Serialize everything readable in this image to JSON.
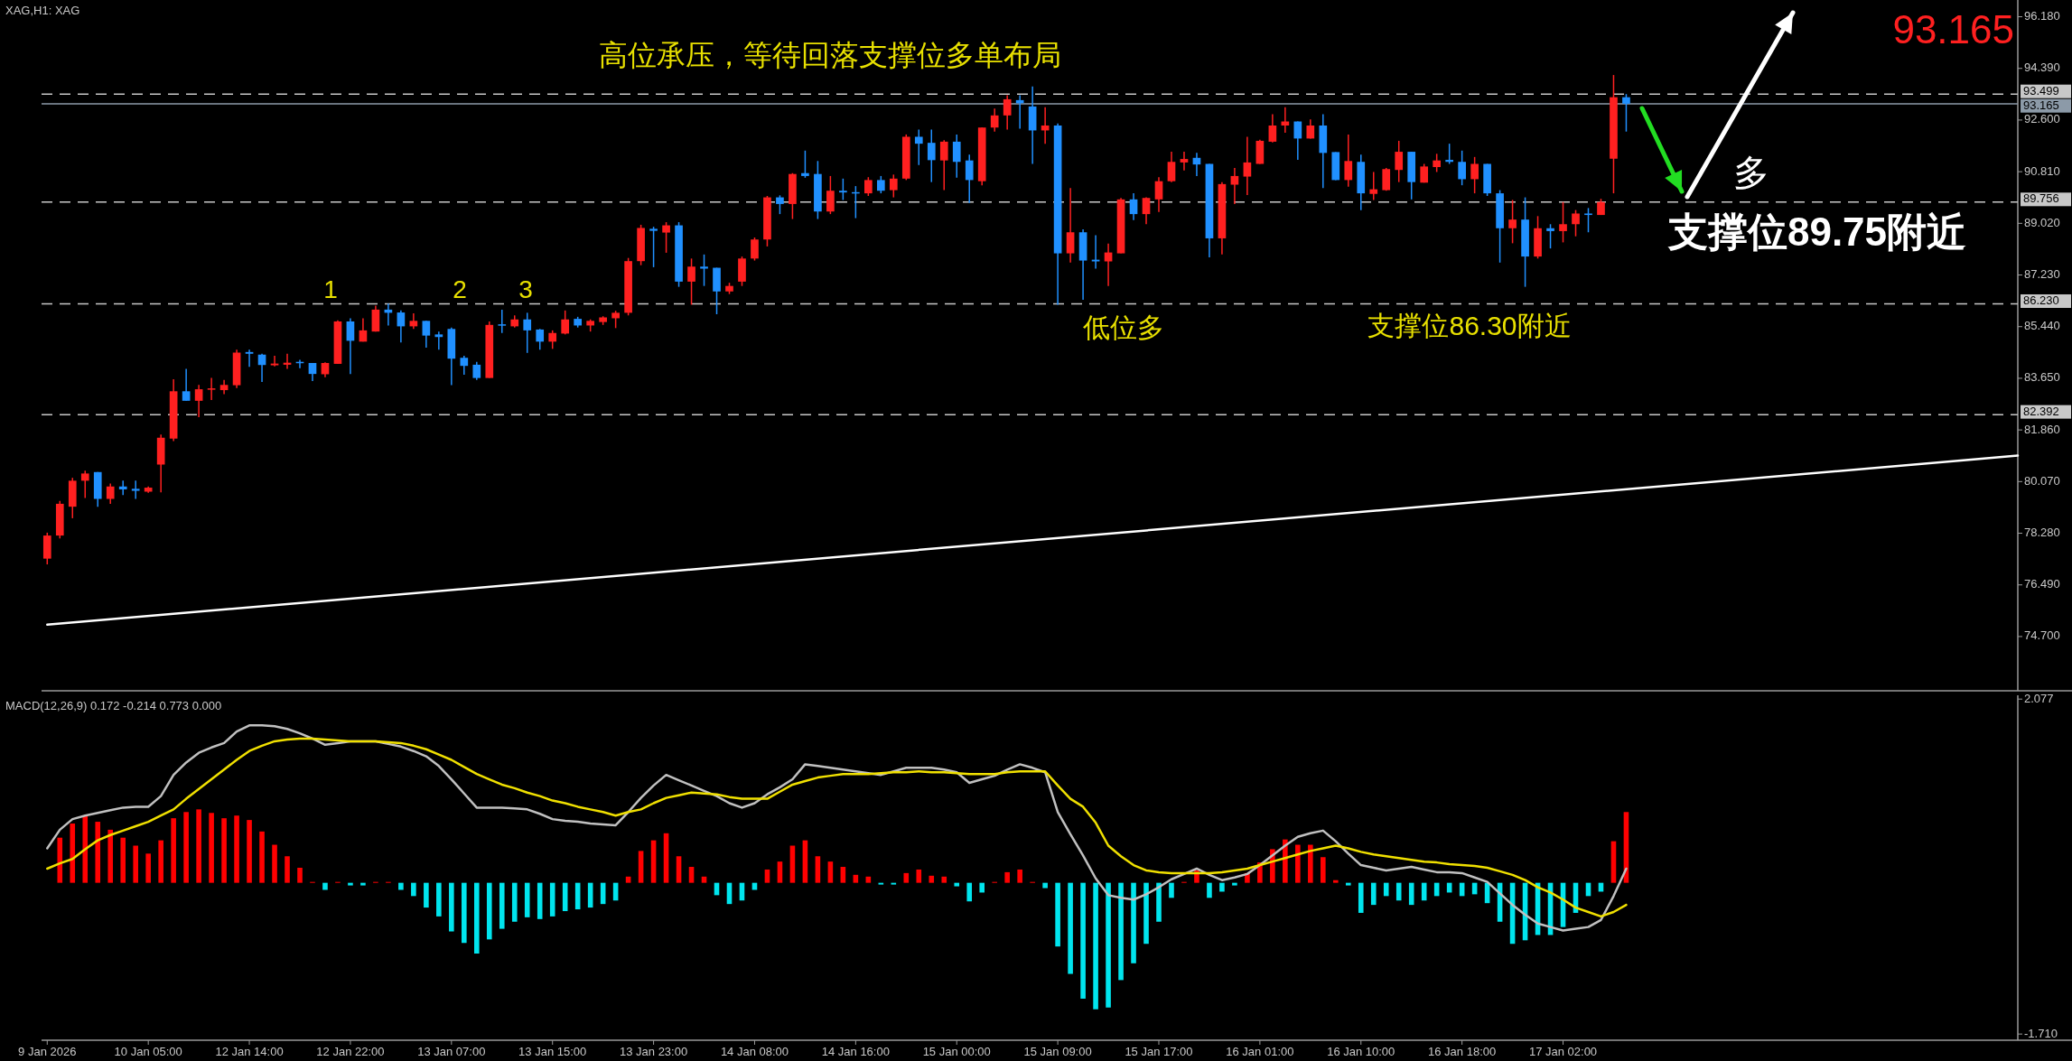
{
  "chart_data": [
    {
      "type": "candlestick",
      "title": "XAG,H1: XAG",
      "categories": [
        null,
        null,
        null,
        null,
        null,
        null,
        null,
        null,
        null,
        null,
        null,
        null,
        null,
        null,
        null,
        null,
        null,
        null,
        null,
        null,
        null,
        null,
        null,
        null,
        null,
        null,
        null,
        null,
        null,
        null,
        null,
        null,
        null,
        null,
        null,
        null,
        null,
        null,
        null,
        null,
        null,
        null,
        null,
        null,
        null,
        null,
        null,
        null,
        null,
        null,
        null,
        null,
        null,
        null,
        null,
        null,
        null,
        null,
        null,
        null,
        null,
        null,
        null,
        null,
        null,
        null,
        null,
        null,
        null,
        null,
        null,
        null,
        null,
        null,
        null,
        null,
        null,
        null,
        null,
        null,
        null,
        null,
        null,
        null,
        null,
        null,
        null,
        null,
        null,
        null,
        null,
        null,
        null,
        null,
        null,
        null,
        null,
        null,
        null,
        null,
        null,
        null,
        null,
        null,
        null,
        null,
        null,
        null,
        null,
        null,
        null,
        null,
        null,
        null,
        null,
        null,
        null,
        null,
        null,
        null,
        null,
        null,
        null,
        null,
        null,
        null,
        null,
        null,
        null,
        null,
        null,
        null,
        null,
        null,
        null,
        null,
        null,
        null,
        null,
        null,
        null,
        null,
        null,
        null,
        null,
        null,
        null,
        null,
        null,
        null,
        null,
        null,
        null,
        null,
        null,
        null,
        null
      ],
      "ohlc": [
        [
          77.4,
          78.3,
          77.2,
          78.2
        ],
        [
          78.2,
          79.4,
          78.1,
          79.3
        ],
        [
          79.2,
          80.2,
          78.8,
          80.1
        ],
        [
          80.1,
          80.45,
          79.5,
          80.35
        ],
        [
          80.4,
          80.4,
          79.2,
          79.47
        ],
        [
          79.47,
          80.0,
          79.3,
          79.9
        ],
        [
          79.9,
          80.1,
          79.6,
          79.8
        ],
        [
          79.82,
          80.1,
          79.47,
          79.75
        ],
        [
          79.72,
          79.9,
          79.68,
          79.86
        ],
        [
          80.66,
          81.7,
          79.7,
          81.59
        ],
        [
          81.56,
          83.62,
          81.47,
          83.2
        ],
        [
          83.2,
          83.98,
          82.87,
          82.87
        ],
        [
          82.87,
          83.42,
          82.3,
          83.27
        ],
        [
          83.27,
          83.66,
          82.9,
          83.3
        ],
        [
          83.24,
          83.59,
          83.1,
          83.42
        ],
        [
          83.41,
          84.64,
          83.31,
          84.54
        ],
        [
          84.56,
          84.64,
          84.05,
          84.5
        ],
        [
          84.47,
          84.5,
          83.52,
          84.11
        ],
        [
          84.1,
          84.43,
          84.06,
          84.16
        ],
        [
          84.12,
          84.5,
          83.98,
          84.19
        ],
        [
          84.22,
          84.29,
          84.0,
          84.18
        ],
        [
          84.18,
          84.18,
          83.55,
          83.8
        ],
        [
          83.79,
          84.2,
          83.69,
          84.18
        ],
        [
          84.15,
          85.66,
          84.15,
          85.62
        ],
        [
          85.62,
          85.73,
          83.8,
          84.95
        ],
        [
          84.92,
          85.73,
          84.92,
          85.31
        ],
        [
          85.27,
          86.17,
          85.27,
          86.03
        ],
        [
          86.03,
          86.24,
          85.48,
          85.92
        ],
        [
          85.93,
          86.0,
          84.89,
          85.45
        ],
        [
          85.45,
          85.9,
          85.36,
          85.64
        ],
        [
          85.64,
          85.64,
          84.71,
          85.13
        ],
        [
          85.17,
          85.27,
          84.64,
          85.08
        ],
        [
          85.36,
          85.41,
          83.41,
          84.33
        ],
        [
          84.36,
          84.43,
          83.77,
          84.08
        ],
        [
          84.12,
          84.22,
          83.59,
          83.66
        ],
        [
          83.66,
          85.62,
          83.66,
          85.5
        ],
        [
          85.52,
          86.03,
          85.22,
          85.48
        ],
        [
          85.45,
          85.83,
          85.41,
          85.69
        ],
        [
          85.69,
          85.92,
          84.53,
          85.31
        ],
        [
          85.34,
          85.36,
          84.64,
          84.92
        ],
        [
          84.92,
          85.31,
          84.67,
          85.22
        ],
        [
          85.2,
          86.0,
          85.17,
          85.69
        ],
        [
          85.71,
          85.78,
          85.41,
          85.48
        ],
        [
          85.48,
          85.69,
          85.27,
          85.64
        ],
        [
          85.6,
          85.8,
          85.5,
          85.76
        ],
        [
          85.73,
          85.99,
          85.39,
          85.92
        ],
        [
          85.92,
          87.82,
          85.83,
          87.71
        ],
        [
          87.71,
          88.97,
          87.57,
          88.86
        ],
        [
          88.83,
          88.9,
          87.5,
          88.76
        ],
        [
          88.7,
          89.06,
          88.0,
          88.95
        ],
        [
          88.95,
          89.06,
          86.82,
          87.0
        ],
        [
          87.0,
          87.8,
          86.2,
          87.52
        ],
        [
          87.52,
          87.94,
          86.85,
          87.45
        ],
        [
          87.48,
          87.48,
          85.87,
          86.66
        ],
        [
          86.66,
          86.96,
          86.57,
          86.85
        ],
        [
          87.0,
          87.87,
          86.85,
          87.8
        ],
        [
          87.8,
          88.53,
          87.73,
          88.46
        ],
        [
          88.46,
          89.97,
          88.22,
          89.92
        ],
        [
          89.92,
          89.99,
          89.34,
          89.69
        ],
        [
          89.69,
          90.76,
          89.17,
          90.73
        ],
        [
          90.76,
          91.54,
          90.6,
          90.66
        ],
        [
          90.73,
          91.18,
          89.17,
          89.43
        ],
        [
          89.43,
          90.66,
          89.34,
          90.15
        ],
        [
          90.15,
          90.57,
          89.83,
          90.09
        ],
        [
          90.1,
          90.31,
          89.2,
          90.06
        ],
        [
          90.06,
          90.62,
          89.97,
          90.52
        ],
        [
          90.52,
          90.66,
          90.06,
          90.15
        ],
        [
          90.17,
          90.71,
          89.92,
          90.57
        ],
        [
          90.57,
          92.1,
          90.52,
          92.02
        ],
        [
          92.02,
          92.27,
          91.04,
          91.78
        ],
        [
          91.81,
          92.27,
          90.45,
          91.21
        ],
        [
          91.2,
          91.9,
          90.17,
          91.85
        ],
        [
          91.85,
          92.1,
          90.6,
          91.15
        ],
        [
          91.2,
          91.4,
          89.73,
          90.52
        ],
        [
          90.48,
          92.34,
          90.34,
          92.34
        ],
        [
          92.34,
          93.0,
          92.2,
          92.76
        ],
        [
          92.76,
          93.46,
          92.27,
          93.32
        ],
        [
          93.29,
          93.46,
          92.3,
          93.18
        ],
        [
          93.07,
          93.76,
          91.08,
          92.24
        ],
        [
          92.24,
          93.04,
          91.78,
          92.41
        ],
        [
          92.41,
          92.48,
          86.2,
          87.98
        ],
        [
          87.98,
          90.24,
          87.66,
          88.71
        ],
        [
          88.71,
          88.81,
          86.37,
          87.73
        ],
        [
          87.76,
          88.61,
          87.45,
          87.7
        ],
        [
          87.7,
          88.32,
          86.85,
          88.01
        ],
        [
          87.98,
          89.9,
          87.98,
          89.85
        ],
        [
          89.85,
          90.06,
          89.13,
          89.34
        ],
        [
          89.34,
          89.92,
          88.99,
          89.9
        ],
        [
          89.85,
          90.62,
          89.41,
          90.48
        ],
        [
          90.48,
          91.5,
          90.45,
          91.15
        ],
        [
          91.13,
          91.5,
          90.85,
          91.25
        ],
        [
          91.29,
          91.46,
          90.66,
          91.06
        ],
        [
          91.08,
          91.08,
          87.84,
          88.5
        ],
        [
          88.5,
          90.45,
          87.94,
          90.38
        ],
        [
          90.36,
          90.94,
          89.69,
          90.66
        ],
        [
          90.64,
          92.02,
          90.0,
          91.13
        ],
        [
          91.08,
          91.92,
          91.08,
          91.88
        ],
        [
          91.85,
          92.8,
          91.82,
          92.41
        ],
        [
          92.41,
          93.04,
          92.16,
          92.55
        ],
        [
          92.55,
          92.55,
          91.22,
          91.96
        ],
        [
          91.96,
          92.62,
          91.96,
          92.41
        ],
        [
          92.41,
          92.8,
          90.24,
          91.46
        ],
        [
          91.49,
          91.49,
          90.52,
          90.52
        ],
        [
          90.52,
          92.1,
          90.29,
          91.18
        ],
        [
          91.15,
          91.4,
          89.48,
          90.06
        ],
        [
          90.04,
          90.8,
          89.83,
          90.2
        ],
        [
          90.17,
          90.94,
          90.15,
          90.9
        ],
        [
          90.87,
          91.88,
          90.45,
          91.5
        ],
        [
          91.5,
          91.5,
          89.85,
          90.45
        ],
        [
          90.43,
          91.08,
          90.43,
          90.99
        ],
        [
          90.97,
          91.43,
          90.8,
          91.2
        ],
        [
          91.22,
          91.78,
          91.08,
          91.15
        ],
        [
          91.15,
          91.54,
          90.34,
          90.55
        ],
        [
          90.55,
          91.32,
          90.06,
          91.08
        ],
        [
          91.08,
          91.08,
          89.97,
          90.06
        ],
        [
          90.06,
          90.17,
          87.66,
          88.85
        ],
        [
          88.85,
          89.83,
          88.33,
          89.15
        ],
        [
          89.15,
          89.92,
          86.82,
          87.87
        ],
        [
          87.87,
          89.27,
          87.8,
          88.85
        ],
        [
          88.85,
          88.99,
          88.15,
          88.75
        ],
        [
          88.75,
          89.76,
          88.36,
          88.99
        ],
        [
          88.99,
          89.48,
          88.57,
          89.36
        ],
        [
          89.36,
          89.55,
          88.71,
          89.31
        ],
        [
          89.31,
          89.87,
          89.31,
          89.76
        ],
        [
          91.26,
          94.16,
          90.06,
          93.39
        ],
        [
          93.39,
          93.5,
          92.2,
          93.165
        ],
        null,
        null,
        null,
        null,
        null,
        null,
        null,
        null,
        null,
        null,
        null,
        null,
        null,
        null,
        null,
        null,
        null,
        null,
        null,
        null,
        null,
        null,
        null,
        null,
        null,
        null,
        null,
        null,
        null,
        null,
        null
      ],
      "colors": [
        "#ff2020",
        "#ff2020",
        "#ff2020",
        "#ff2020",
        "#2090ff",
        "#ff2020",
        "#2090ff",
        "#2090ff",
        "#ff2020",
        "#ff2020",
        "#ff2020",
        "#2090ff",
        "#ff2020",
        "#ff2020",
        "#ff2020",
        "#ff2020",
        "#2090ff",
        "#2090ff",
        "#ff2020",
        "#ff2020",
        "#2090ff",
        "#2090ff",
        "#ff2020",
        "#ff2020",
        "#2090ff",
        "#ff2020",
        "#ff2020",
        "#2090ff",
        "#2090ff",
        "#ff2020",
        "#2090ff",
        "#2090ff",
        "#2090ff",
        "#2090ff",
        "#2090ff",
        "#ff2020",
        "#2090ff",
        "#ff2020",
        "#2090ff",
        "#2090ff",
        "#ff2020",
        "#ff2020",
        "#2090ff",
        "#ff2020",
        "#ff2020",
        "#ff2020",
        "#ff2020",
        "#ff2020",
        "#2090ff",
        "#ff2020",
        "#2090ff",
        "#ff2020",
        "#2090ff",
        "#2090ff",
        "#ff2020",
        "#ff2020",
        "#ff2020",
        "#ff2020",
        "#2090ff",
        "#ff2020",
        "#2090ff",
        "#2090ff",
        "#ff2020",
        "#2090ff",
        "#2090ff",
        "#ff2020",
        "#2090ff",
        "#ff2020",
        "#ff2020",
        "#2090ff",
        "#2090ff",
        "#ff2020",
        "#2090ff",
        "#2090ff",
        "#ff2020",
        "#ff2020",
        "#ff2020",
        "#2090ff",
        "#2090ff",
        "#ff2020",
        "#2090ff",
        "#ff2020",
        "#2090ff",
        "#2090ff",
        "#ff2020",
        "#ff2020",
        "#2090ff",
        "#ff2020",
        "#ff2020",
        "#ff2020",
        "#ff2020",
        "#2090ff",
        "#2090ff",
        "#ff2020",
        "#ff2020",
        "#ff2020",
        "#ff2020",
        "#ff2020",
        "#ff2020",
        "#2090ff",
        "#ff2020",
        "#2090ff",
        "#2090ff",
        "#ff2020",
        "#2090ff",
        "#ff2020",
        "#ff2020",
        "#ff2020",
        "#2090ff",
        "#ff2020",
        "#ff2020",
        "#2090ff",
        "#2090ff",
        "#ff2020",
        "#2090ff",
        "#2090ff",
        "#ff2020",
        "#2090ff",
        "#ff2020",
        "#2090ff",
        "#ff2020",
        "#ff2020",
        "#2090ff",
        "#ff2020",
        "#ff2020",
        "#2090ff",
        null,
        null,
        null,
        null,
        null,
        null,
        null,
        null,
        null,
        null,
        null,
        null,
        null,
        null,
        null,
        null,
        null,
        null,
        null,
        null,
        null,
        null,
        null,
        null,
        null,
        null,
        null,
        null,
        null,
        null,
        null
      ],
      "series": [
        {
          "type": "line",
          "color": "#ffffff",
          "values": [
            75.11,
            null,
            null,
            null,
            null,
            null,
            null,
            null,
            null,
            null,
            null,
            null,
            null,
            null,
            null,
            null,
            null,
            null,
            null,
            null,
            null,
            null,
            null,
            null,
            null,
            null,
            null,
            null,
            null,
            null,
            null,
            null,
            null,
            null,
            null,
            null,
            null,
            null,
            null,
            null,
            null,
            null,
            null,
            null,
            null,
            null,
            null,
            null,
            null,
            null,
            null,
            null,
            null,
            null,
            null,
            null,
            null,
            null,
            null,
            null,
            null,
            null,
            null,
            null,
            null,
            null,
            null,
            null,
            null,
            null,
            null,
            null,
            null,
            null,
            null,
            null,
            null,
            null,
            null,
            null,
            null,
            null,
            null,
            null,
            null,
            null,
            null,
            null,
            null,
            null,
            null,
            null,
            null,
            null,
            null,
            null,
            null,
            null,
            null,
            null,
            null,
            null,
            null,
            null,
            null,
            null,
            null,
            null,
            null,
            null,
            null,
            null,
            null,
            null,
            null,
            null,
            null,
            null,
            null,
            null,
            null,
            null,
            null,
            null,
            null,
            null,
            null,
            null,
            null,
            null,
            null,
            null,
            null,
            null,
            null,
            null,
            null,
            null,
            null,
            null,
            null,
            null,
            null,
            null,
            null,
            null,
            null,
            null,
            null,
            null,
            null,
            null,
            null,
            null,
            null,
            null,
            80.97
          ]
        }
      ],
      "ylim": [
        72.82,
        96.76
      ],
      "yticks": [
        {
          "value": 96.18,
          "label": "96.180"
        },
        {
          "value": 94.39,
          "label": "94.390"
        },
        {
          "value": 92.6,
          "label": "92.600"
        },
        {
          "value": 90.81,
          "label": "90.810"
        },
        {
          "value": 89.02,
          "label": "89.020"
        },
        {
          "value": 87.23,
          "label": "87.230"
        },
        {
          "value": 85.44,
          "label": "85.440"
        },
        {
          "value": 83.65,
          "label": "83.650"
        },
        {
          "value": 81.86,
          "label": "81.860"
        },
        {
          "value": 80.07,
          "label": "80.070"
        },
        {
          "value": 78.28,
          "label": "78.280"
        },
        {
          "value": 76.49,
          "label": "76.490"
        },
        {
          "value": 74.7,
          "label": "74.700"
        }
      ],
      "ref_lines": [
        {
          "axis": "y",
          "value": 93.499,
          "label": "93.499",
          "line_style": "dashed",
          "color": "#c8c8c8"
        },
        {
          "axis": "y",
          "value": 93.165,
          "label": "93.165",
          "line_style": "solid",
          "color": "#8c9aa8"
        },
        {
          "axis": "y",
          "value": 89.756,
          "label": "89.756",
          "line_style": "dashed",
          "color": "#c8c8c8"
        },
        {
          "axis": "y",
          "value": 86.23,
          "label": "86.230",
          "line_style": "dashed",
          "color": "#c8c8c8"
        },
        {
          "axis": "y",
          "value": 82.392,
          "label": "82.392",
          "line_style": "dashed",
          "color": "#c8c8c8"
        }
      ],
      "annotations": [
        "高位承压，等待回落支撑位多单布局",
        "1",
        "2",
        "3",
        "低位多",
        "支撑位86.30附近",
        "多",
        "支撑位89.75附近",
        "93.165"
      ],
      "tick_labels": "y"
    },
    {
      "type": "bar",
      "title": "MACD(12,26,9) 0.172 -0.214 0.773 0.000",
      "categories": [
        "9 Jan 2026",
        null,
        null,
        null,
        null,
        null,
        null,
        null,
        "10 Jan 05:00",
        null,
        null,
        null,
        null,
        null,
        null,
        null,
        "12 Jan 14:00",
        null,
        null,
        null,
        null,
        null,
        null,
        null,
        "12 Jan 22:00",
        null,
        null,
        null,
        null,
        null,
        null,
        null,
        "13 Jan 07:00",
        null,
        null,
        null,
        null,
        null,
        null,
        null,
        "13 Jan 15:00",
        null,
        null,
        null,
        null,
        null,
        null,
        null,
        "13 Jan 23:00",
        null,
        null,
        null,
        null,
        null,
        null,
        null,
        "14 Jan 08:00",
        null,
        null,
        null,
        null,
        null,
        null,
        null,
        "14 Jan 16:00",
        null,
        null,
        null,
        null,
        null,
        null,
        null,
        "15 Jan 00:00",
        null,
        null,
        null,
        null,
        null,
        null,
        null,
        "15 Jan 09:00",
        null,
        null,
        null,
        null,
        null,
        null,
        null,
        "15 Jan 17:00",
        null,
        null,
        null,
        null,
        null,
        null,
        null,
        "16 Jan 01:00",
        null,
        null,
        null,
        null,
        null,
        null,
        null,
        "16 Jan 10:00",
        null,
        null,
        null,
        null,
        null,
        null,
        null,
        "16 Jan 18:00",
        null,
        null,
        null,
        null,
        null,
        null,
        null,
        "17 Jan 02:00",
        null,
        null,
        null,
        null,
        null,
        null,
        null,
        null,
        null,
        null,
        null,
        null,
        null,
        null,
        null,
        null,
        null,
        null,
        null,
        null,
        null,
        null,
        null,
        null,
        null,
        null,
        null,
        null,
        null,
        null,
        null,
        null,
        null,
        null,
        null,
        null
      ],
      "series": [
        {
          "type": "bar",
          "values": [
            null,
            0.51,
            0.67,
            0.76,
            0.69,
            0.6,
            0.51,
            0.42,
            0.33,
            0.48,
            0.73,
            0.8,
            0.83,
            0.79,
            0.73,
            0.76,
            0.71,
            0.58,
            0.43,
            0.3,
            0.17,
            0.01,
            -0.08,
            0.01,
            -0.03,
            -0.03,
            0.01,
            0.01,
            -0.08,
            -0.15,
            -0.28,
            -0.38,
            -0.55,
            -0.68,
            -0.8,
            -0.64,
            -0.52,
            -0.44,
            -0.39,
            -0.41,
            -0.38,
            -0.32,
            -0.3,
            -0.28,
            -0.24,
            -0.2,
            0.07,
            0.36,
            0.48,
            0.56,
            0.3,
            0.18,
            0.07,
            -0.14,
            -0.24,
            -0.2,
            -0.08,
            0.15,
            0.24,
            0.42,
            0.48,
            0.3,
            0.24,
            0.18,
            0.09,
            0.07,
            -0.02,
            -0.02,
            0.11,
            0.15,
            0.08,
            0.07,
            -0.04,
            -0.21,
            -0.11,
            0.01,
            0.12,
            0.15,
            0.01,
            -0.06,
            -0.72,
            -1.03,
            -1.31,
            -1.43,
            -1.41,
            -1.1,
            -0.91,
            -0.69,
            -0.44,
            -0.17,
            0.01,
            0.14,
            -0.17,
            -0.1,
            -0.03,
            0.11,
            0.23,
            0.38,
            0.49,
            0.43,
            0.43,
            0.29,
            0.03,
            -0.03,
            -0.34,
            -0.25,
            -0.15,
            -0.2,
            -0.25,
            -0.2,
            -0.15,
            -0.11,
            -0.15,
            -0.13,
            -0.23,
            -0.44,
            -0.69,
            -0.65,
            -0.59,
            -0.59,
            -0.5,
            -0.34,
            -0.15,
            -0.1,
            0.47,
            0.8,
            null,
            null,
            null,
            null,
            null,
            null,
            null,
            null,
            null,
            null,
            null,
            null,
            null,
            null,
            null,
            null,
            null,
            null,
            null,
            null,
            null,
            null,
            null,
            null,
            null,
            null,
            null,
            null,
            null,
            null,
            null
          ],
          "colors": [
            null,
            "#ff0000",
            "#ff0000",
            "#ff0000",
            "#ff0000",
            "#ff0000",
            "#ff0000",
            "#ff0000",
            "#ff0000",
            "#ff0000",
            "#ff0000",
            "#ff0000",
            "#ff0000",
            "#ff0000",
            "#ff0000",
            "#ff0000",
            "#ff0000",
            "#ff0000",
            "#ff0000",
            "#ff0000",
            "#ff0000",
            "#ff0000",
            "#00e5ee",
            "#ff0000",
            "#00e5ee",
            "#00e5ee",
            "#ff0000",
            "#ff0000",
            "#00e5ee",
            "#00e5ee",
            "#00e5ee",
            "#00e5ee",
            "#00e5ee",
            "#00e5ee",
            "#00e5ee",
            "#00e5ee",
            "#00e5ee",
            "#00e5ee",
            "#00e5ee",
            "#00e5ee",
            "#00e5ee",
            "#00e5ee",
            "#00e5ee",
            "#00e5ee",
            "#00e5ee",
            "#00e5ee",
            "#ff0000",
            "#ff0000",
            "#ff0000",
            "#ff0000",
            "#ff0000",
            "#ff0000",
            "#ff0000",
            "#00e5ee",
            "#00e5ee",
            "#00e5ee",
            "#00e5ee",
            "#ff0000",
            "#ff0000",
            "#ff0000",
            "#ff0000",
            "#ff0000",
            "#ff0000",
            "#ff0000",
            "#ff0000",
            "#ff0000",
            "#00e5ee",
            "#00e5ee",
            "#ff0000",
            "#ff0000",
            "#ff0000",
            "#ff0000",
            "#00e5ee",
            "#00e5ee",
            "#00e5ee",
            "#ff0000",
            "#ff0000",
            "#ff0000",
            "#ff0000",
            "#00e5ee",
            "#00e5ee",
            "#00e5ee",
            "#00e5ee",
            "#00e5ee",
            "#00e5ee",
            "#00e5ee",
            "#00e5ee",
            "#00e5ee",
            "#00e5ee",
            "#00e5ee",
            "#ff0000",
            "#ff0000",
            "#00e5ee",
            "#00e5ee",
            "#00e5ee",
            "#ff0000",
            "#ff0000",
            "#ff0000",
            "#ff0000",
            "#ff0000",
            "#ff0000",
            "#ff0000",
            "#ff0000",
            "#00e5ee",
            "#00e5ee",
            "#00e5ee",
            "#00e5ee",
            "#00e5ee",
            "#00e5ee",
            "#00e5ee",
            "#00e5ee",
            "#00e5ee",
            "#00e5ee",
            "#00e5ee",
            "#00e5ee",
            "#00e5ee",
            "#00e5ee",
            "#00e5ee",
            "#00e5ee",
            "#00e5ee",
            "#00e5ee",
            "#00e5ee",
            "#00e5ee",
            "#00e5ee",
            "#ff0000",
            "#ff0000",
            null,
            null,
            null,
            null,
            null,
            null,
            null,
            null,
            null,
            null,
            null,
            null,
            null,
            null,
            null,
            null,
            null,
            null,
            null,
            null,
            null,
            null,
            null,
            null,
            null,
            null,
            null,
            null,
            null,
            null,
            null
          ]
        },
        {
          "type": "line",
          "color": "#c0c0c0",
          "values": [
            0.39,
            0.6,
            0.72,
            0.76,
            0.79,
            0.82,
            0.85,
            0.86,
            0.86,
            0.98,
            1.22,
            1.36,
            1.47,
            1.53,
            1.58,
            1.71,
            1.78,
            1.78,
            1.77,
            1.74,
            1.69,
            1.63,
            1.56,
            1.58,
            1.6,
            1.6,
            1.6,
            1.57,
            1.54,
            1.49,
            1.43,
            1.32,
            1.17,
            1.01,
            0.85,
            0.85,
            0.85,
            0.84,
            0.83,
            0.78,
            0.72,
            0.7,
            0.69,
            0.67,
            0.66,
            0.65,
            0.8,
            0.96,
            1.1,
            1.22,
            1.16,
            1.1,
            1.04,
            0.98,
            0.9,
            0.85,
            0.9,
            1.0,
            1.08,
            1.17,
            1.34,
            1.32,
            1.3,
            1.28,
            1.26,
            1.24,
            1.22,
            1.26,
            1.3,
            1.3,
            1.3,
            1.28,
            1.25,
            1.13,
            1.17,
            1.21,
            1.28,
            1.34,
            1.3,
            1.25,
            0.8,
            0.55,
            0.31,
            0.05,
            -0.14,
            -0.17,
            -0.19,
            -0.13,
            -0.05,
            0.04,
            0.1,
            0.16,
            0.09,
            0.03,
            0.06,
            0.1,
            0.2,
            0.31,
            0.42,
            0.52,
            0.56,
            0.59,
            0.47,
            0.33,
            0.2,
            0.17,
            0.14,
            0.16,
            0.18,
            0.15,
            0.12,
            0.12,
            0.11,
            0.06,
            0.01,
            -0.12,
            -0.25,
            -0.36,
            -0.46,
            -0.5,
            -0.54,
            -0.52,
            -0.5,
            -0.42,
            -0.15,
            0.16,
            null,
            null,
            null,
            null,
            null,
            null,
            null,
            null,
            null,
            null,
            null,
            null,
            null,
            null,
            null,
            null,
            null,
            null,
            null,
            null,
            null,
            null,
            null,
            null,
            null,
            null,
            null,
            null,
            null,
            null,
            null
          ]
        },
        {
          "type": "line",
          "color": "#f0e000",
          "values": [
            0.16,
            0.22,
            0.27,
            0.38,
            0.48,
            0.54,
            0.59,
            0.64,
            0.69,
            0.76,
            0.83,
            0.95,
            1.06,
            1.17,
            1.28,
            1.39,
            1.49,
            1.55,
            1.6,
            1.62,
            1.63,
            1.63,
            1.62,
            1.61,
            1.6,
            1.6,
            1.6,
            1.59,
            1.58,
            1.55,
            1.51,
            1.45,
            1.39,
            1.31,
            1.23,
            1.17,
            1.11,
            1.07,
            1.02,
            0.98,
            0.93,
            0.9,
            0.86,
            0.83,
            0.8,
            0.76,
            0.8,
            0.83,
            0.9,
            0.96,
            0.99,
            1.02,
            1.01,
            1.0,
            0.97,
            0.95,
            0.95,
            0.95,
            1.03,
            1.11,
            1.15,
            1.19,
            1.21,
            1.23,
            1.23,
            1.23,
            1.24,
            1.25,
            1.25,
            1.26,
            1.25,
            1.25,
            1.24,
            1.23,
            1.23,
            1.23,
            1.25,
            1.26,
            1.26,
            1.26,
            1.1,
            0.95,
            0.86,
            0.68,
            0.42,
            0.3,
            0.2,
            0.14,
            0.12,
            0.11,
            0.11,
            0.11,
            0.11,
            0.12,
            0.14,
            0.16,
            0.2,
            0.24,
            0.28,
            0.32,
            0.36,
            0.39,
            0.42,
            0.39,
            0.35,
            0.32,
            0.3,
            0.28,
            0.26,
            0.24,
            0.23,
            0.21,
            0.2,
            0.19,
            0.17,
            0.13,
            0.09,
            0.03,
            -0.05,
            -0.11,
            -0.19,
            -0.28,
            -0.33,
            -0.38,
            -0.33,
            -0.25,
            null,
            null,
            null,
            null,
            null,
            null,
            null,
            null,
            null,
            null,
            null,
            null,
            null,
            null,
            null,
            null,
            null,
            null,
            null,
            null,
            null,
            null,
            null,
            null,
            null,
            null,
            null,
            null,
            null,
            null,
            null
          ]
        }
      ],
      "ylim": [
        -1.78,
        2.12
      ],
      "yticks": [
        {
          "value": 2.077,
          "label": "2.077"
        },
        {
          "value": -1.71,
          "label": "-1.710"
        }
      ]
    }
  ]
}
